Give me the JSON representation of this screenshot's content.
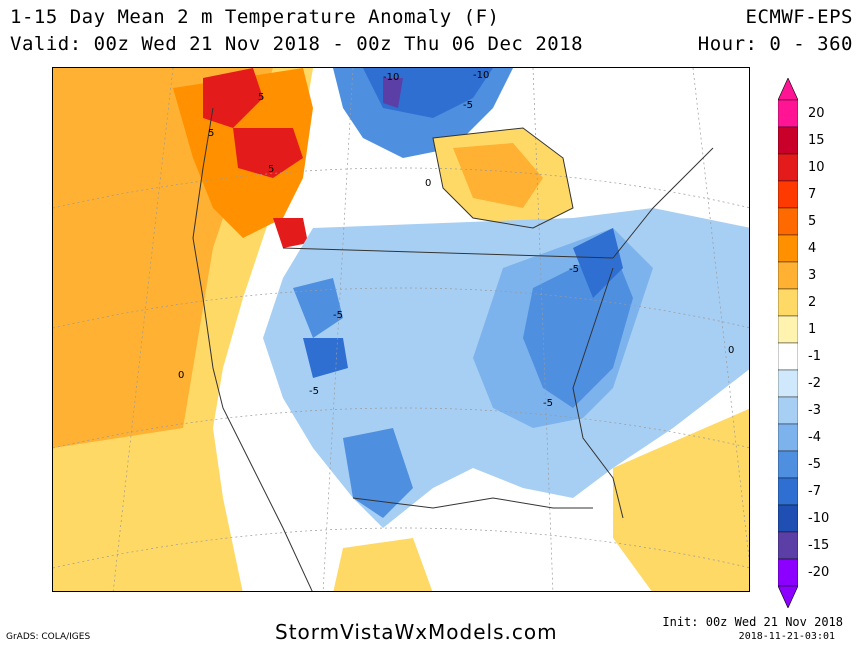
{
  "header": {
    "title_line1": "1-15 Day Mean 2 m Temperature Anomaly (F)",
    "title_line2": "Valid: 00z Wed 21 Nov 2018 - 00z Thu 06 Dec 2018",
    "model": "ECMWF-EPS",
    "hours": "Hour: 0 - 360"
  },
  "map": {
    "contour_labels": [
      "-10",
      "-10",
      "-5",
      "5",
      "5",
      "5",
      "0",
      "-5",
      "-5",
      "-5",
      "-5",
      "0",
      "0"
    ]
  },
  "colorbar": {
    "labels": [
      "20",
      "15",
      "10",
      "7",
      "5",
      "4",
      "3",
      "2",
      "1",
      "-1",
      "-2",
      "-3",
      "-4",
      "-5",
      "-7",
      "-10",
      "-15",
      "-20"
    ],
    "colors": [
      "#ff1493",
      "#c8002a",
      "#e41b1b",
      "#ff3a00",
      "#ff6a00",
      "#ff9100",
      "#ffb133",
      "#ffd966",
      "#fff3b0",
      "#ffffff",
      "#cfe8fb",
      "#a7cff3",
      "#7db3ec",
      "#4f8fe0",
      "#2f6fd2",
      "#1f4fb3",
      "#5b3ea6",
      "#8b00ff"
    ]
  },
  "footer": {
    "grads": "GrADS: COLA/IGES",
    "site": "StormVistaWxModels.com",
    "init": "Init: 00z Wed 21 Nov 2018",
    "stamp": "2018-11-21-03:01"
  }
}
